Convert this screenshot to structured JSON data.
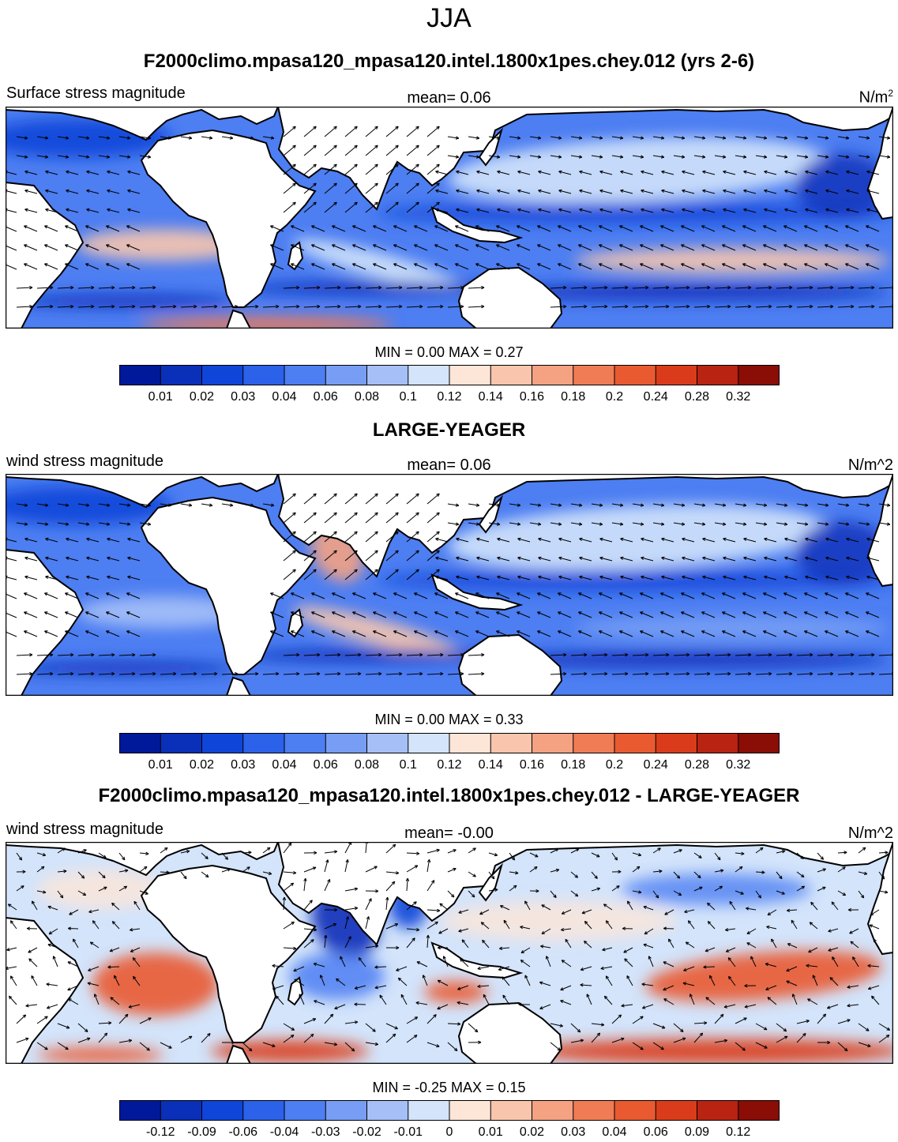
{
  "title": "JJA",
  "colors": {
    "land": "#ffffff",
    "coast": "#000000",
    "vector": "#000000"
  },
  "panels": [
    {
      "title": "F2000climo.mpasa120_mpasa120.intel.1800x1pes.chey.012 (yrs 2-6)",
      "left_string": "Surface stress magnitude",
      "center_string": "mean=   0.06",
      "right_string_base": "N/m",
      "right_string_sup": "2",
      "min_max": "MIN =   0.00 MAX =   0.27",
      "colorbar": {
        "colors": [
          "#00199b",
          "#0a2fb8",
          "#0f45d8",
          "#2c62ea",
          "#4d7ef2",
          "#779ef4",
          "#a6c0f7",
          "#d3e4fb",
          "#fde6d8",
          "#f9c6ad",
          "#f5a283",
          "#f07c55",
          "#e95a31",
          "#da3c1b",
          "#b82312",
          "#8a0d06"
        ],
        "labels": [
          "0.01",
          "0.02",
          "0.03",
          "0.04",
          "0.06",
          "0.08",
          "0.1",
          "0.12",
          "0.14",
          "0.16",
          "0.18",
          "0.2",
          "0.24",
          "0.28",
          "0.32"
        ]
      }
    },
    {
      "title": "LARGE-YEAGER",
      "left_string": "wind stress magnitude",
      "center_string": "mean=   0.06",
      "right_string": "N/m^2",
      "min_max": "MIN =   0.00 MAX =   0.33",
      "colorbar": {
        "colors": [
          "#00199b",
          "#0a2fb8",
          "#0f45d8",
          "#2c62ea",
          "#4d7ef2",
          "#779ef4",
          "#a6c0f7",
          "#d3e4fb",
          "#fde6d8",
          "#f9c6ad",
          "#f5a283",
          "#f07c55",
          "#e95a31",
          "#da3c1b",
          "#b82312",
          "#8a0d06"
        ],
        "labels": [
          "0.01",
          "0.02",
          "0.03",
          "0.04",
          "0.06",
          "0.08",
          "0.1",
          "0.12",
          "0.14",
          "0.16",
          "0.18",
          "0.2",
          "0.24",
          "0.28",
          "0.32"
        ]
      }
    },
    {
      "title": "F2000climo.mpasa120_mpasa120.intel.1800x1pes.chey.012 - LARGE-YEAGER",
      "left_string": "wind stress magnitude",
      "center_string": "mean=  -0.00",
      "right_string": "N/m^2",
      "min_max": "MIN =  -0.25 MAX =   0.15",
      "colorbar": {
        "colors": [
          "#00199b",
          "#0a2fb8",
          "#0f45d8",
          "#2c62ea",
          "#4d7ef2",
          "#779ef4",
          "#a6c0f7",
          "#d3e4fb",
          "#fde6d8",
          "#f9c6ad",
          "#f5a283",
          "#f07c55",
          "#e95a31",
          "#da3c1b",
          "#b82312",
          "#8a0d06"
        ],
        "labels": [
          "-0.12",
          "-0.09",
          "-0.06",
          "-0.04",
          "-0.03",
          "-0.02",
          "-0.01",
          "0",
          "0.01",
          "0.02",
          "0.03",
          "0.04",
          "0.06",
          "0.09",
          "0.12"
        ]
      }
    }
  ]
}
